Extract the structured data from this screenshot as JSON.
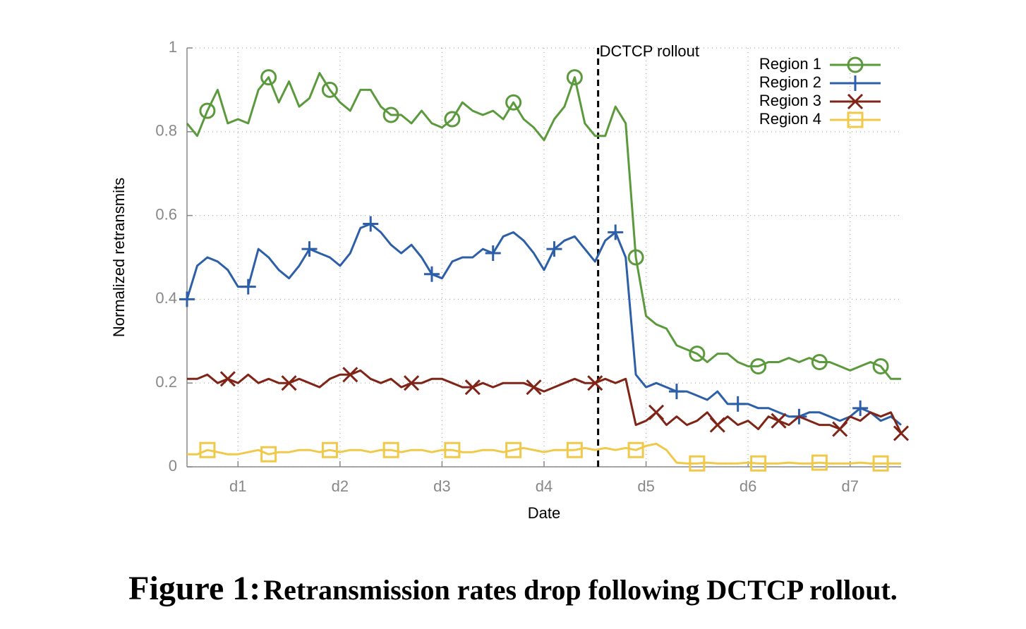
{
  "chart_data": {
    "type": "line",
    "caption_label": "Figure 1:",
    "caption": "Retransmission rates drop following DCTCP rollout.",
    "x_label": "Date",
    "y_label": "Normalized retransmits",
    "xlim": [
      0.5,
      7.5
    ],
    "ylim": [
      0,
      1
    ],
    "xticks": [
      {
        "value": 1,
        "label": "d1"
      },
      {
        "value": 2,
        "label": "d2"
      },
      {
        "value": 3,
        "label": "d3"
      },
      {
        "value": 4,
        "label": "d4"
      },
      {
        "value": 5,
        "label": "d5"
      },
      {
        "value": 6,
        "label": "d6"
      },
      {
        "value": 7,
        "label": "d7"
      }
    ],
    "yticks": [
      0,
      0.2,
      0.4,
      0.6,
      0.8,
      1
    ],
    "grid": true,
    "legend": "top-right",
    "annotations": [
      {
        "text": "DCTCP rollout",
        "x": 4.53
      }
    ],
    "x": [
      0.5,
      0.6,
      0.7,
      0.8,
      0.9,
      1.0,
      1.1,
      1.2,
      1.3,
      1.4,
      1.5,
      1.6,
      1.7,
      1.8,
      1.9,
      2.0,
      2.1,
      2.2,
      2.3,
      2.4,
      2.5,
      2.6,
      2.7,
      2.8,
      2.9,
      3.0,
      3.1,
      3.2,
      3.3,
      3.4,
      3.5,
      3.6,
      3.7,
      3.8,
      3.9,
      4.0,
      4.1,
      4.2,
      4.3,
      4.4,
      4.5,
      4.6,
      4.7,
      4.8,
      4.9,
      5.0,
      5.1,
      5.2,
      5.3,
      5.4,
      5.5,
      5.6,
      5.7,
      5.8,
      5.9,
      6.0,
      6.1,
      6.2,
      6.3,
      6.4,
      6.5,
      6.6,
      6.7,
      6.8,
      6.9,
      7.0,
      7.1,
      7.2,
      7.3,
      7.4,
      7.5
    ],
    "series": [
      {
        "name": "Region 1",
        "color": "#5b9a3c",
        "marker": "circle",
        "values": [
          0.82,
          0.79,
          0.85,
          0.9,
          0.82,
          0.83,
          0.82,
          0.9,
          0.93,
          0.87,
          0.92,
          0.86,
          0.88,
          0.94,
          0.9,
          0.87,
          0.85,
          0.9,
          0.9,
          0.86,
          0.84,
          0.84,
          0.82,
          0.85,
          0.82,
          0.81,
          0.83,
          0.87,
          0.85,
          0.84,
          0.85,
          0.83,
          0.87,
          0.83,
          0.81,
          0.78,
          0.83,
          0.86,
          0.93,
          0.82,
          0.79,
          0.79,
          0.86,
          0.82,
          0.5,
          0.36,
          0.34,
          0.33,
          0.29,
          0.28,
          0.27,
          0.25,
          0.27,
          0.27,
          0.25,
          0.24,
          0.24,
          0.25,
          0.25,
          0.26,
          0.25,
          0.26,
          0.25,
          0.25,
          0.24,
          0.23,
          0.24,
          0.25,
          0.24,
          0.21,
          0.21
        ]
      },
      {
        "name": "Region 2",
        "color": "#2c5fa8",
        "marker": "plus",
        "values": [
          0.4,
          0.48,
          0.5,
          0.49,
          0.47,
          0.43,
          0.43,
          0.52,
          0.5,
          0.47,
          0.45,
          0.48,
          0.52,
          0.51,
          0.5,
          0.48,
          0.51,
          0.57,
          0.58,
          0.56,
          0.53,
          0.51,
          0.53,
          0.5,
          0.46,
          0.45,
          0.49,
          0.5,
          0.5,
          0.52,
          0.51,
          0.55,
          0.56,
          0.54,
          0.51,
          0.47,
          0.52,
          0.54,
          0.55,
          0.52,
          0.49,
          0.54,
          0.56,
          0.5,
          0.22,
          0.19,
          0.2,
          0.19,
          0.18,
          0.18,
          0.17,
          0.16,
          0.18,
          0.15,
          0.15,
          0.15,
          0.14,
          0.14,
          0.13,
          0.12,
          0.12,
          0.13,
          0.13,
          0.12,
          0.11,
          0.12,
          0.14,
          0.13,
          0.11,
          0.12,
          0.1
        ]
      },
      {
        "name": "Region 3",
        "color": "#7f2416",
        "marker": "cross",
        "values": [
          0.21,
          0.21,
          0.22,
          0.2,
          0.21,
          0.2,
          0.22,
          0.2,
          0.21,
          0.2,
          0.2,
          0.21,
          0.2,
          0.19,
          0.21,
          0.22,
          0.22,
          0.23,
          0.21,
          0.2,
          0.21,
          0.19,
          0.2,
          0.2,
          0.21,
          0.21,
          0.2,
          0.19,
          0.19,
          0.2,
          0.19,
          0.2,
          0.2,
          0.2,
          0.19,
          0.18,
          0.19,
          0.2,
          0.21,
          0.2,
          0.2,
          0.21,
          0.2,
          0.21,
          0.1,
          0.11,
          0.13,
          0.1,
          0.12,
          0.1,
          0.11,
          0.13,
          0.1,
          0.12,
          0.1,
          0.11,
          0.09,
          0.12,
          0.11,
          0.1,
          0.12,
          0.11,
          0.1,
          0.1,
          0.09,
          0.12,
          0.11,
          0.13,
          0.12,
          0.13,
          0.08
        ]
      },
      {
        "name": "Region 4",
        "color": "#f0c94a",
        "marker": "square",
        "values": [
          0.03,
          0.03,
          0.04,
          0.035,
          0.03,
          0.03,
          0.035,
          0.04,
          0.03,
          0.035,
          0.035,
          0.04,
          0.04,
          0.035,
          0.04,
          0.035,
          0.04,
          0.04,
          0.035,
          0.04,
          0.04,
          0.035,
          0.04,
          0.04,
          0.035,
          0.04,
          0.04,
          0.035,
          0.035,
          0.04,
          0.04,
          0.035,
          0.04,
          0.045,
          0.04,
          0.035,
          0.04,
          0.04,
          0.04,
          0.045,
          0.04,
          0.045,
          0.04,
          0.045,
          0.04,
          0.05,
          0.055,
          0.04,
          0.01,
          0.008,
          0.008,
          0.01,
          0.008,
          0.008,
          0.008,
          0.01,
          0.008,
          0.008,
          0.008,
          0.01,
          0.008,
          0.008,
          0.01,
          0.008,
          0.008,
          0.008,
          0.01,
          0.008,
          0.008,
          0.008,
          0.008
        ]
      }
    ]
  }
}
